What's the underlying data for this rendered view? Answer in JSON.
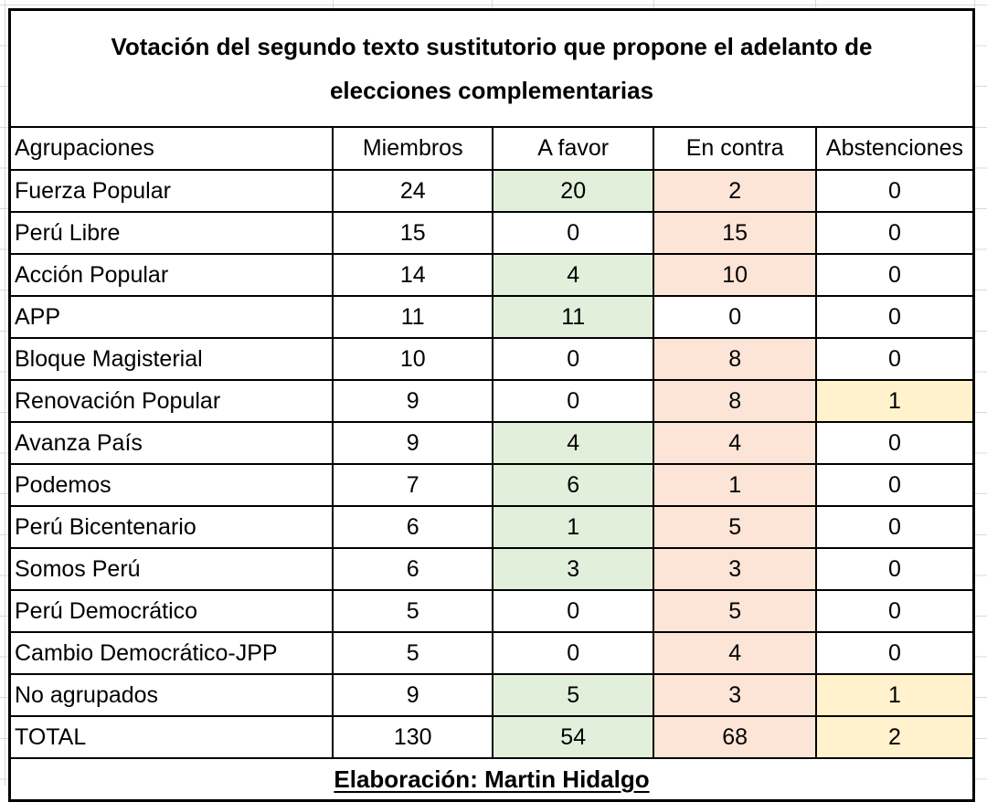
{
  "display": {
    "title_line1": "Votación del segundo texto sustitutorio que propone el adelanto de",
    "title_line2": "elecciones complementarias"
  },
  "chart_data": {
    "type": "table",
    "title": "Votación del segundo texto sustitutorio que propone el adelanto de elecciones complementarias",
    "columns": [
      "Agrupaciones",
      "Miembros",
      "A favor",
      "En contra",
      "Abstenciones"
    ],
    "rows": [
      [
        "Fuerza Popular",
        24,
        20,
        2,
        0
      ],
      [
        "Perú Libre",
        15,
        0,
        15,
        0
      ],
      [
        "Acción Popular",
        14,
        4,
        10,
        0
      ],
      [
        "APP",
        11,
        11,
        0,
        0
      ],
      [
        "Bloque Magisterial",
        10,
        0,
        8,
        0
      ],
      [
        "Renovación Popular",
        9,
        0,
        8,
        1
      ],
      [
        "Avanza País",
        9,
        4,
        4,
        0
      ],
      [
        "Podemos",
        7,
        6,
        1,
        0
      ],
      [
        "Perú Bicentenario",
        6,
        1,
        5,
        0
      ],
      [
        "Somos Perú",
        6,
        3,
        3,
        0
      ],
      [
        "Perú Democrático",
        5,
        0,
        5,
        0
      ],
      [
        "Cambio Democrático-JPP",
        5,
        0,
        4,
        0
      ],
      [
        "No agrupados",
        9,
        5,
        3,
        1
      ]
    ],
    "total_row": [
      "TOTAL",
      130,
      54,
      68,
      2
    ],
    "footer": "Elaboración: Martin Hidalgo",
    "colors": {
      "a_favor_bg": "#E2EFDA",
      "en_contra_bg": "#FCE4D6",
      "abstenciones_bg": "#FFF2CC",
      "gridline": "#D9D9D9",
      "border": "#000000",
      "text": "#000000",
      "background": "#FFFFFF"
    }
  }
}
